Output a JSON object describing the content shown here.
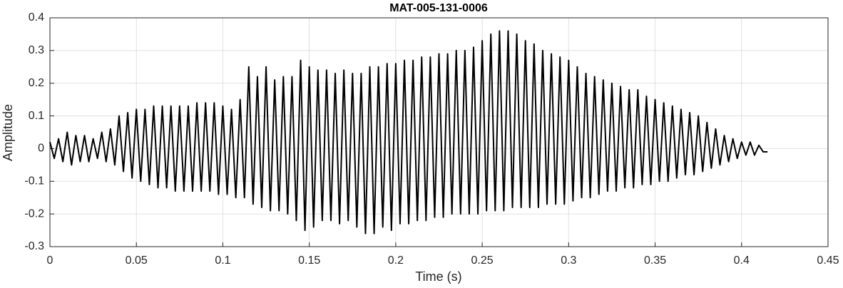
{
  "chart_data": {
    "type": "line",
    "title": "MAT-005-131-0006",
    "x_label": "Time (s)",
    "y_label": "Amplitude",
    "x": [
      0,
      0.0025,
      0.005,
      0.0075,
      0.01,
      0.0125,
      0.015,
      0.0175,
      0.02,
      0.0225,
      0.025,
      0.0275,
      0.03,
      0.0325,
      0.035,
      0.0375,
      0.04,
      0.0425,
      0.045,
      0.0475,
      0.05,
      0.0525,
      0.055,
      0.0575,
      0.06,
      0.0625,
      0.065,
      0.0675,
      0.07,
      0.0725,
      0.075,
      0.0775,
      0.08,
      0.0825,
      0.085,
      0.0875,
      0.09,
      0.0925,
      0.095,
      0.0975,
      0.1,
      0.1025,
      0.105,
      0.1075,
      0.11,
      0.1125,
      0.115,
      0.1175,
      0.12,
      0.1225,
      0.125,
      0.1275,
      0.13,
      0.1325,
      0.135,
      0.1375,
      0.14,
      0.1425,
      0.145,
      0.1475,
      0.15,
      0.1525,
      0.155,
      0.1575,
      0.16,
      0.1625,
      0.165,
      0.1675,
      0.17,
      0.1725,
      0.175,
      0.1775,
      0.18,
      0.1825,
      0.185,
      0.1875,
      0.19,
      0.1925,
      0.195,
      0.1975,
      0.2,
      0.2025,
      0.205,
      0.2075,
      0.21,
      0.2125,
      0.215,
      0.2175,
      0.22,
      0.2225,
      0.225,
      0.2275,
      0.23,
      0.2325,
      0.235,
      0.2375,
      0.24,
      0.2425,
      0.245,
      0.2475,
      0.25,
      0.2525,
      0.255,
      0.2575,
      0.26,
      0.2625,
      0.265,
      0.2675,
      0.27,
      0.2725,
      0.275,
      0.2775,
      0.28,
      0.2825,
      0.285,
      0.2875,
      0.29,
      0.2925,
      0.295,
      0.2975,
      0.3,
      0.3025,
      0.305,
      0.3075,
      0.31,
      0.3125,
      0.315,
      0.3175,
      0.32,
      0.3225,
      0.325,
      0.3275,
      0.33,
      0.3325,
      0.335,
      0.3375,
      0.34,
      0.3425,
      0.345,
      0.3475,
      0.35,
      0.3525,
      0.355,
      0.3575,
      0.36,
      0.3625,
      0.365,
      0.3675,
      0.37,
      0.3725,
      0.375,
      0.3775,
      0.38,
      0.3825,
      0.385,
      0.3875,
      0.39,
      0.3925,
      0.395,
      0.3975,
      0.4,
      0.4025,
      0.405,
      0.4075,
      0.41,
      0.4125,
      0.415
    ],
    "values": [
      0.02,
      -0.03,
      0.03,
      -0.04,
      0.05,
      -0.05,
      0.04,
      -0.04,
      0.04,
      -0.04,
      0.03,
      -0.03,
      0.05,
      -0.04,
      0.06,
      -0.05,
      0.1,
      -0.07,
      0.11,
      -0.09,
      0.12,
      -0.1,
      0.12,
      -0.11,
      0.13,
      -0.12,
      0.13,
      -0.12,
      0.13,
      -0.13,
      0.13,
      -0.13,
      0.13,
      -0.13,
      0.14,
      -0.13,
      0.14,
      -0.13,
      0.14,
      -0.14,
      0.13,
      -0.14,
      0.12,
      -0.15,
      0.15,
      -0.15,
      0.25,
      -0.17,
      0.22,
      -0.18,
      0.25,
      -0.19,
      0.21,
      -0.19,
      0.22,
      -0.2,
      0.22,
      -0.22,
      0.27,
      -0.25,
      0.25,
      -0.24,
      0.24,
      -0.22,
      0.24,
      -0.22,
      0.23,
      -0.23,
      0.24,
      -0.22,
      0.23,
      -0.24,
      0.23,
      -0.26,
      0.25,
      -0.26,
      0.25,
      -0.24,
      0.26,
      -0.25,
      0.26,
      -0.23,
      0.27,
      -0.23,
      0.27,
      -0.22,
      0.28,
      -0.22,
      0.28,
      -0.21,
      0.29,
      -0.21,
      0.29,
      -0.2,
      0.3,
      -0.2,
      0.3,
      -0.2,
      0.31,
      -0.2,
      0.33,
      -0.19,
      0.35,
      -0.19,
      0.36,
      -0.19,
      0.36,
      -0.18,
      0.35,
      -0.18,
      0.33,
      -0.18,
      0.32,
      -0.18,
      0.3,
      -0.17,
      0.29,
      -0.17,
      0.28,
      -0.17,
      0.27,
      -0.16,
      0.25,
      -0.15,
      0.23,
      -0.15,
      0.22,
      -0.14,
      0.21,
      -0.13,
      0.2,
      -0.13,
      0.19,
      -0.12,
      0.18,
      -0.12,
      0.18,
      -0.11,
      0.16,
      -0.11,
      0.15,
      -0.1,
      0.14,
      -0.1,
      0.13,
      -0.09,
      0.12,
      -0.08,
      0.11,
      -0.08,
      0.1,
      -0.07,
      0.08,
      -0.06,
      0.06,
      -0.05,
      0.04,
      -0.04,
      0.03,
      -0.03,
      0.02,
      -0.02,
      0.02,
      -0.02,
      0.01,
      -0.01,
      -0.01
    ],
    "color": "#000000",
    "xlim": [
      0,
      0.45
    ],
    "xticks": [
      0,
      0.05,
      0.1,
      0.15,
      0.2,
      0.25,
      0.3,
      0.35,
      0.4,
      0.45
    ],
    "ylim": [
      -0.3,
      0.4
    ],
    "yticks": [
      -0.3,
      -0.2,
      -0.1,
      0,
      0.1,
      0.2,
      0.3,
      0.4
    ],
    "grid": true
  }
}
